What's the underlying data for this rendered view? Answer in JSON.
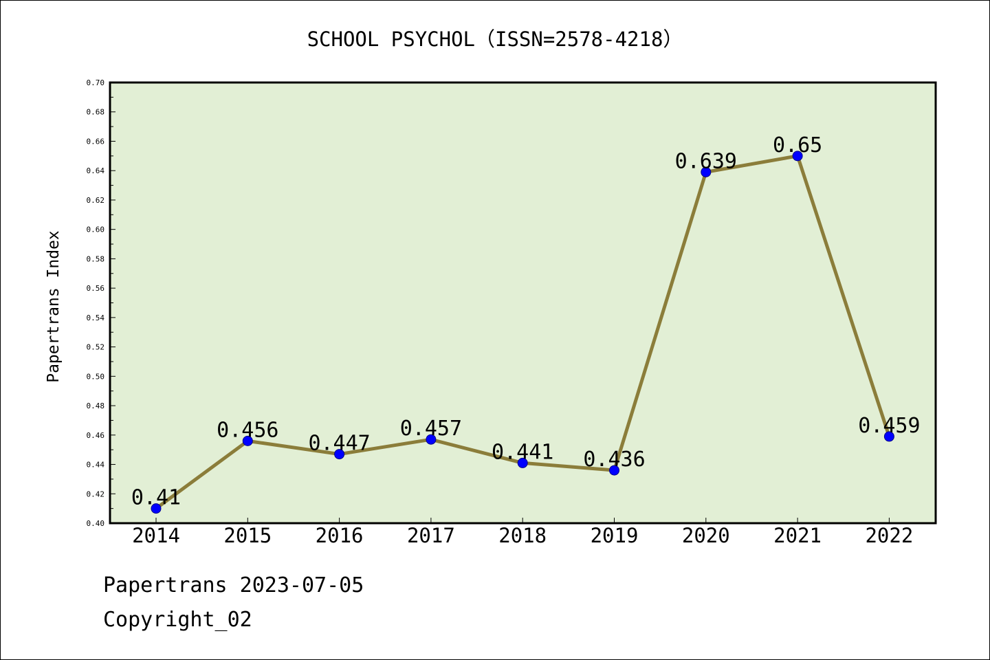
{
  "chart_data": {
    "type": "line",
    "title": "SCHOOL PSYCHOL（ISSN=2578-4218）",
    "xlabel": "",
    "ylabel": "Papertrans Index",
    "categories": [
      "2014",
      "2015",
      "2016",
      "2017",
      "2018",
      "2019",
      "2020",
      "2021",
      "2022"
    ],
    "series": [
      {
        "values": [
          0.41,
          0.456,
          0.447,
          0.457,
          0.441,
          0.436,
          0.639,
          0.65,
          0.459
        ],
        "labels": [
          "0.41",
          "0.456",
          "0.447",
          "0.457",
          "0.441",
          "0.436",
          "0.639",
          "0.65",
          "0.459"
        ]
      }
    ],
    "ylim": [
      0.4,
      0.7
    ],
    "yticks": [
      "0.40",
      "0.42",
      "0.44",
      "0.46",
      "0.48",
      "0.50",
      "0.52",
      "0.54",
      "0.56",
      "0.58",
      "0.60",
      "0.62",
      "0.64",
      "0.66",
      "0.68",
      "0.70"
    ],
    "grid": false,
    "colors": {
      "plot_background": "#e2efd5",
      "line": "#8b7d3a",
      "marker": "#0000ff"
    }
  },
  "footer": {
    "date_line": "Papertrans 2023-07-05",
    "copyright_line": "Copyright_02"
  }
}
